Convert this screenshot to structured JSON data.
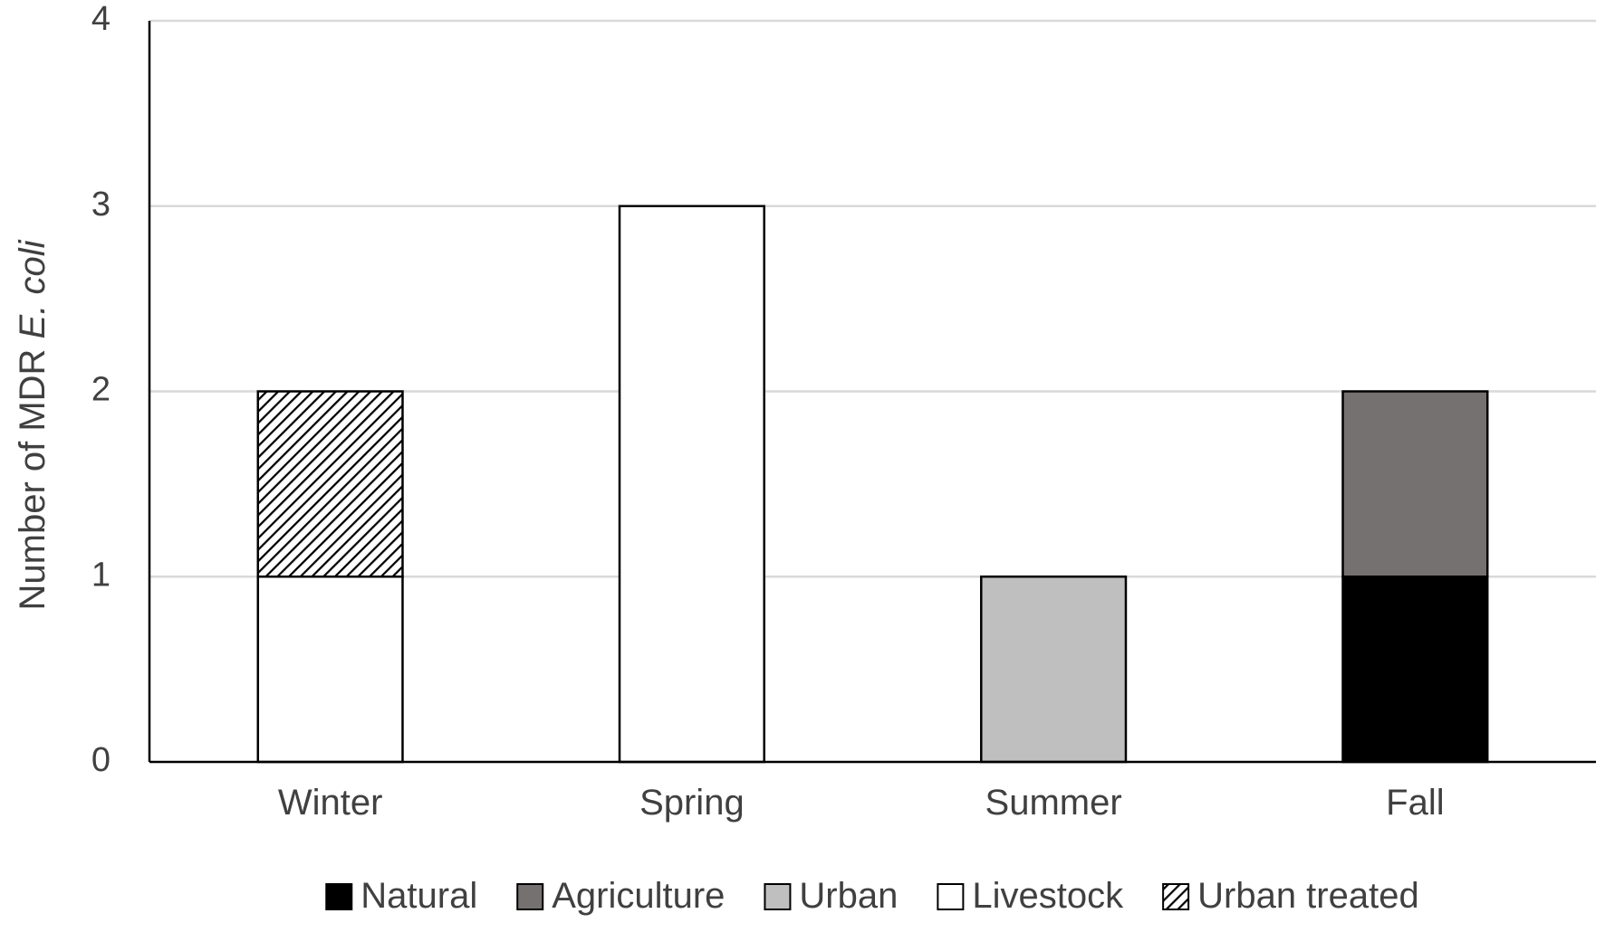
{
  "chart_data": {
    "type": "bar",
    "stacked": true,
    "categories": [
      "Winter",
      "Spring",
      "Summer",
      "Fall"
    ],
    "series": [
      {
        "name": "Natural",
        "color": "#000000",
        "pattern": "solid",
        "values": [
          0,
          0,
          0,
          1
        ]
      },
      {
        "name": "Agriculture",
        "color": "#767171",
        "pattern": "solid",
        "values": [
          0,
          0,
          0,
          1
        ]
      },
      {
        "name": "Urban",
        "color": "#bfbfbf",
        "pattern": "solid",
        "values": [
          0,
          0,
          1,
          0
        ]
      },
      {
        "name": "Livestock",
        "color": "#ffffff",
        "pattern": "solid",
        "values": [
          1,
          3,
          0,
          0
        ]
      },
      {
        "name": "Urban treated",
        "color": "#ffffff",
        "pattern": "diagonal-hatch",
        "values": [
          1,
          0,
          0,
          0
        ]
      }
    ],
    "title": "",
    "xlabel": "",
    "ylabel": {
      "prefix": "Number of MDR ",
      "italic": "E. coli"
    },
    "ylim": [
      0,
      4
    ],
    "yticks": [
      "0",
      "1",
      "2",
      "3",
      "4"
    ],
    "grid": true,
    "legend_position": "bottom"
  }
}
